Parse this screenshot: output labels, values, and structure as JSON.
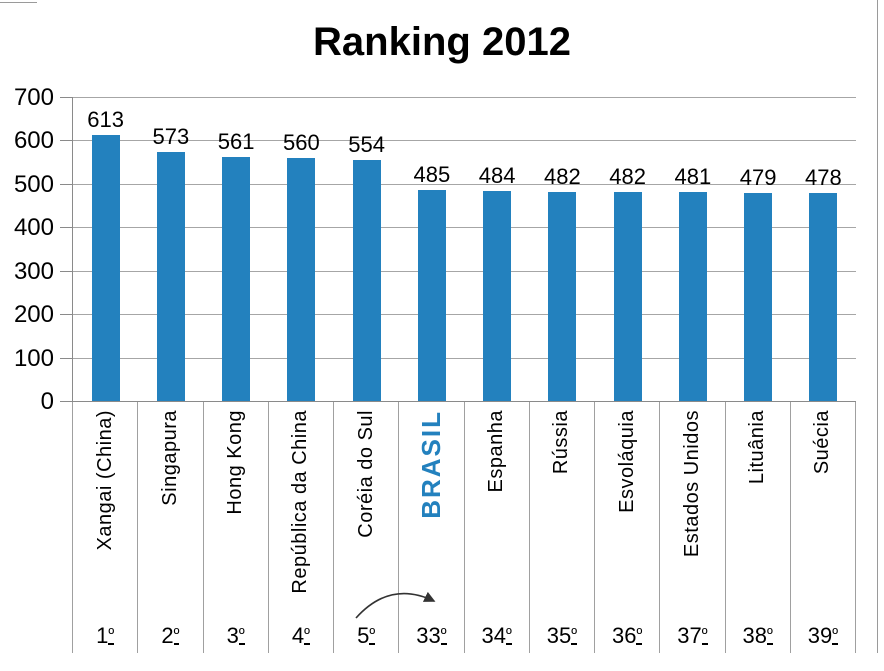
{
  "title": "Ranking 2012",
  "chart_data": {
    "type": "bar",
    "title": "Ranking 2012",
    "categories": [
      "Xangai (China)",
      "Singapura",
      "Hong Kong",
      "República da China",
      "Coréia do Sul",
      "BRASIL",
      "Espanha",
      "Rússia",
      "Esvoláquia",
      "Estados Unidos",
      "Lituânia",
      "Suécia"
    ],
    "values": [
      613,
      573,
      561,
      560,
      554,
      485,
      484,
      482,
      482,
      481,
      479,
      478
    ],
    "ranks": [
      {
        "num": "1",
        "suffix": "º"
      },
      {
        "num": "2",
        "suffix": "º"
      },
      {
        "num": "3",
        "suffix": "º"
      },
      {
        "num": "4",
        "suffix": "º"
      },
      {
        "num": "5",
        "suffix": "º"
      },
      {
        "num": "33",
        "suffix": "º"
      },
      {
        "num": "34",
        "suffix": "º"
      },
      {
        "num": "35",
        "suffix": "º"
      },
      {
        "num": "36",
        "suffix": "º"
      },
      {
        "num": "37",
        "suffix": "º"
      },
      {
        "num": "38",
        "suffix": "º"
      },
      {
        "num": "39",
        "suffix": "º"
      }
    ],
    "highlight_index": 5,
    "highlight_label": "BRASIL",
    "xlabel": "",
    "ylabel": "",
    "ylim": [
      0,
      700
    ],
    "ytick_step": 100,
    "grid": true,
    "legend_position": "none",
    "bar_color": "#2381BE",
    "annotation": "curved arrow jump from rank 5º to rank 33º"
  },
  "y_axis": {
    "ticks": [
      "700",
      "600",
      "500",
      "400",
      "300",
      "200",
      "100",
      "0"
    ]
  },
  "colors": {
    "bar": "#2381BE",
    "brasil_text": "#2381BE",
    "gridline": "#A6A6A6",
    "axis": "#8A8A8A",
    "divider": "#A0A0A0",
    "title_text": "#000000",
    "arrow": "#333333"
  }
}
